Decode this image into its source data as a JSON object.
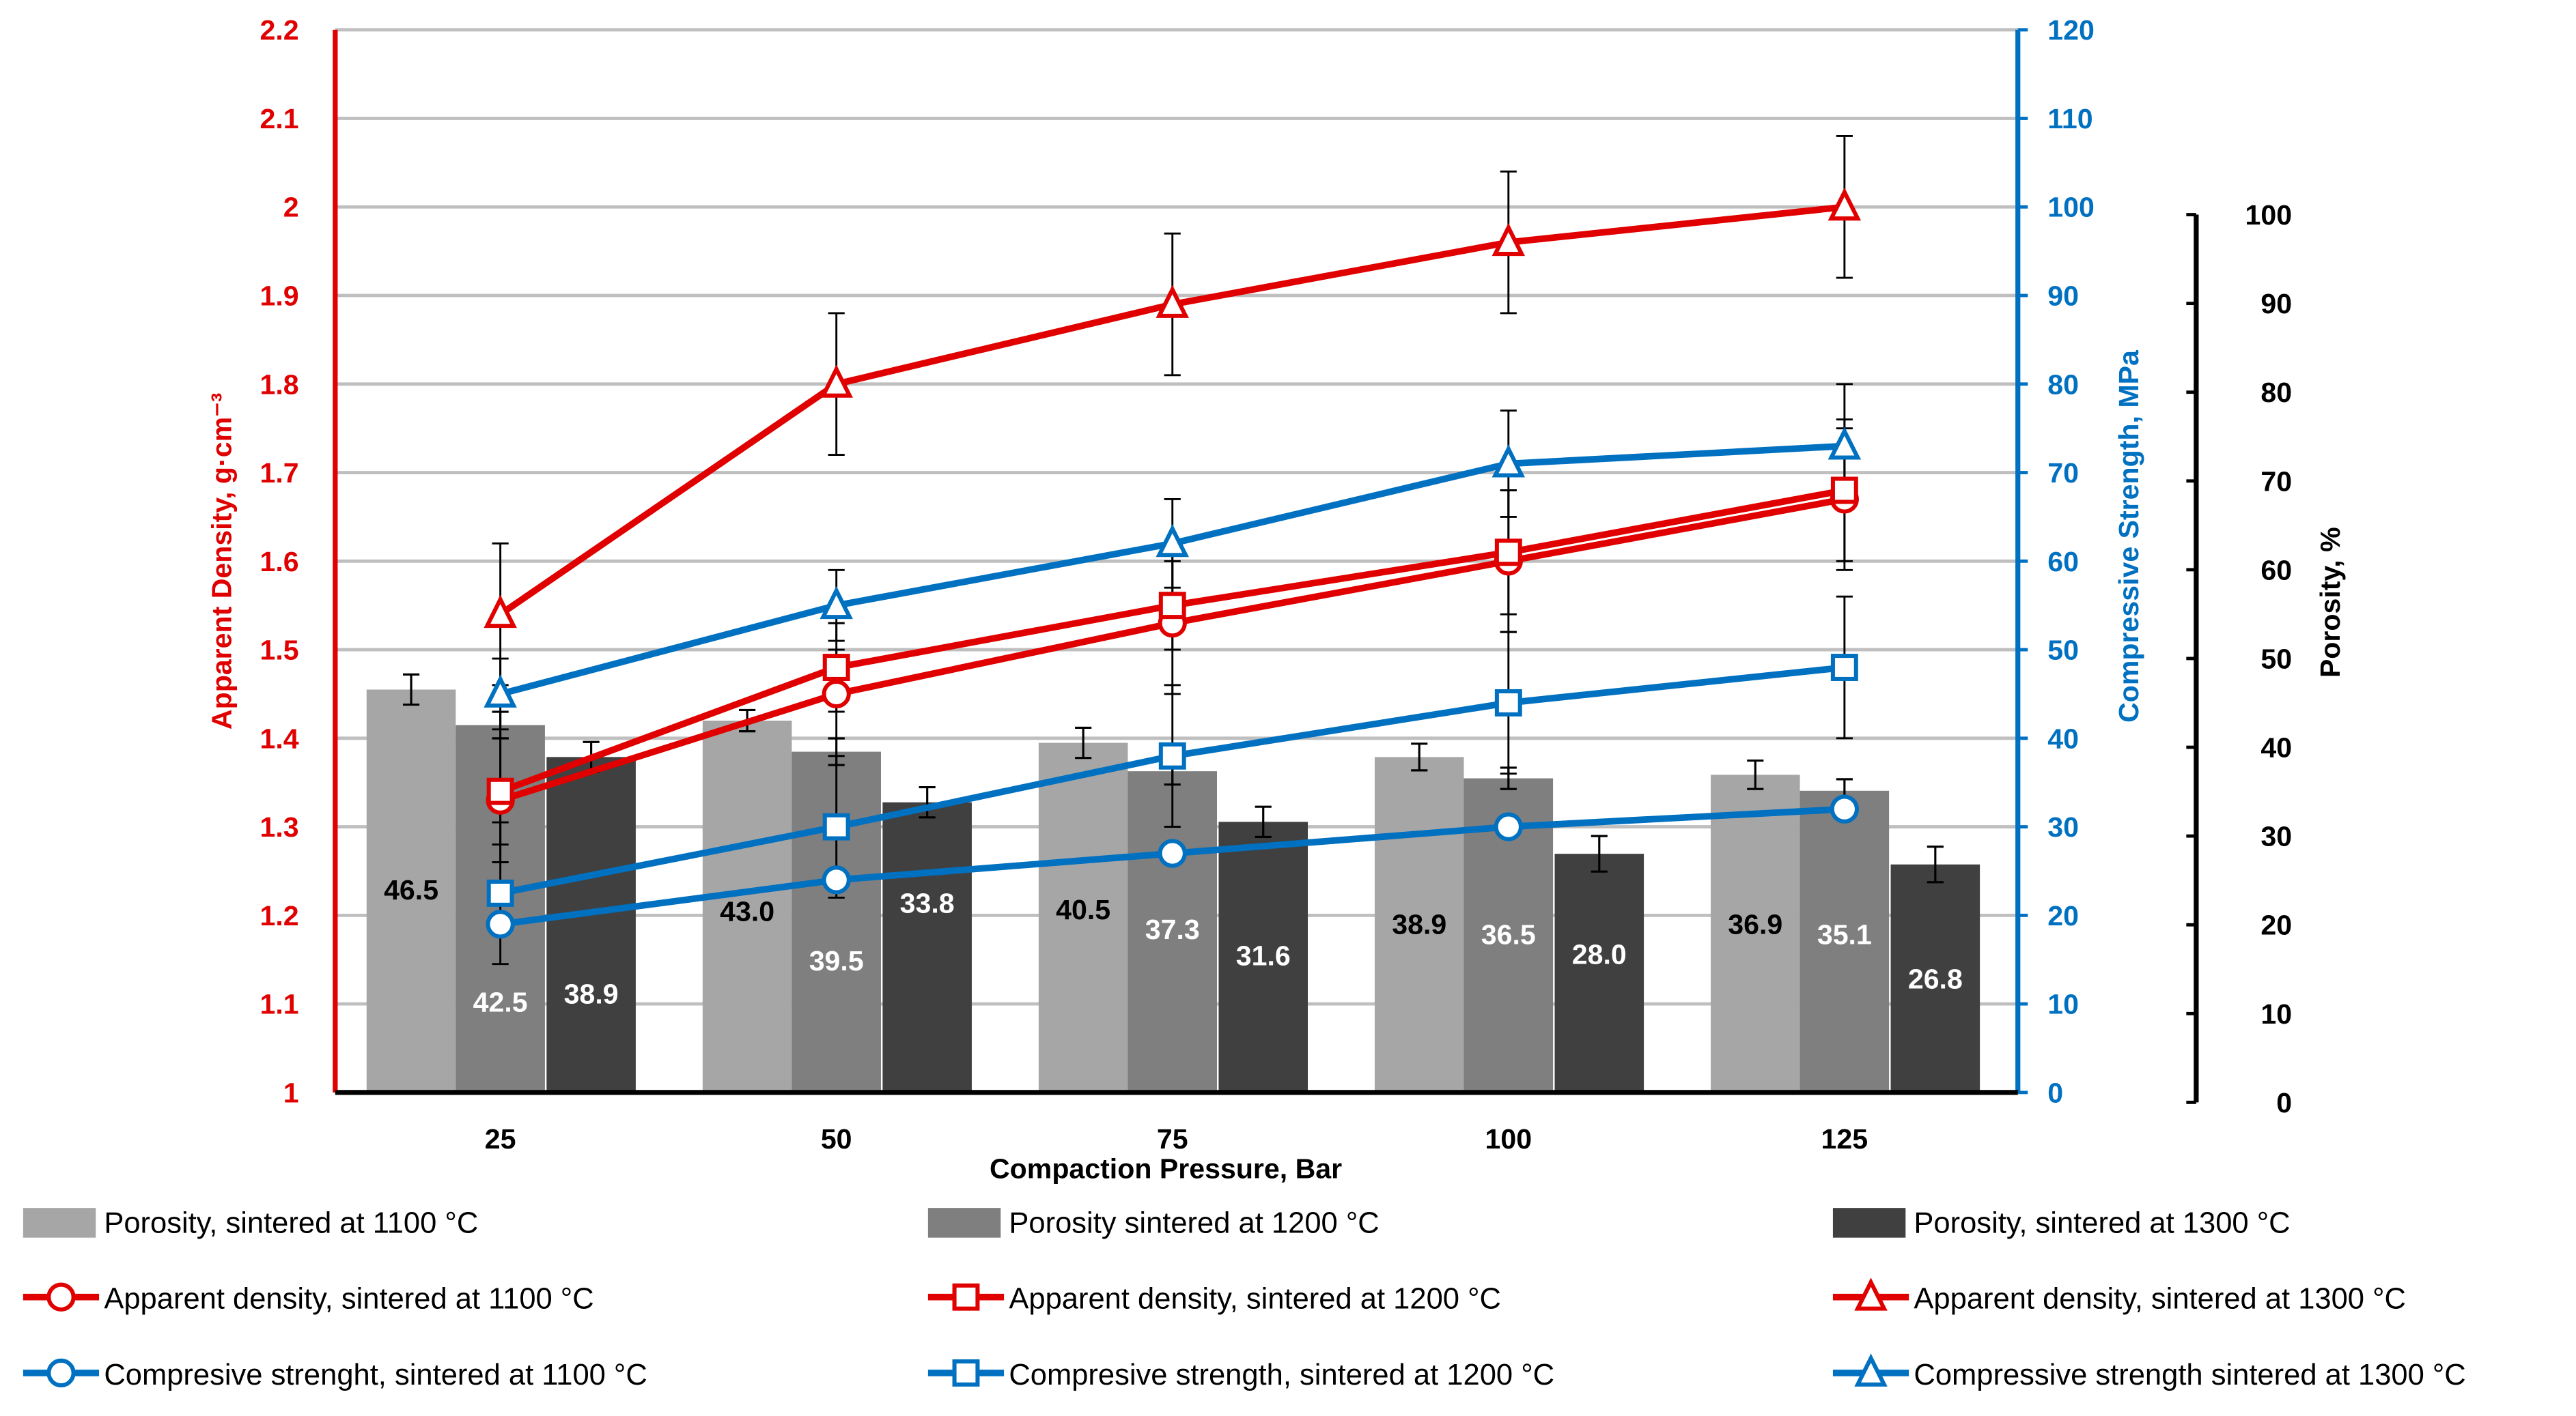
{
  "chart_data": {
    "type": "bar+line",
    "xlabel": "Compaction Pressure, Bar",
    "categories": [
      "25",
      "50",
      "75",
      "100",
      "125"
    ],
    "axes": {
      "left": {
        "label": "Apparent Density, g·cm⁻³",
        "range": [
          1,
          2.2
        ],
        "ticks": [
          "1",
          "1.1",
          "1.2",
          "1.3",
          "1.4",
          "1.5",
          "1.6",
          "1.7",
          "1.8",
          "1.9",
          "2",
          "2.1",
          "2.2"
        ],
        "color": "#e00000"
      },
      "right_blue": {
        "label": "Compressive Strength, MPa",
        "range": [
          0,
          120
        ],
        "ticks": [
          "0",
          "10",
          "20",
          "30",
          "40",
          "50",
          "60",
          "70",
          "80",
          "90",
          "100",
          "110",
          "120"
        ],
        "color": "#0070c0"
      },
      "right_black": {
        "label": "Porosity, %",
        "range": [
          0,
          100
        ],
        "ticks": [
          "0",
          "10",
          "20",
          "30",
          "40",
          "50",
          "60",
          "70",
          "80",
          "90",
          "100"
        ],
        "color": "#000000"
      }
    },
    "grid": true,
    "bars": [
      {
        "name": "Porosity, sintered at 1100 °C",
        "color": "#a6a6a6",
        "label_color": "#000000",
        "values": [
          46.5,
          43.0,
          40.5,
          38.9,
          36.9
        ],
        "labels": [
          "46.5",
          "43.0",
          "40.5",
          "38.9",
          "36.9"
        ],
        "errors": [
          1.7,
          1.2,
          1.7,
          1.5,
          1.6
        ]
      },
      {
        "name": "Porosity sintered at 1200 °C",
        "color": "#7f7f7f",
        "label_color": "#ffffff",
        "values": [
          42.5,
          39.5,
          37.3,
          36.5,
          35.1
        ],
        "labels": [
          "42.5",
          "39.5",
          "37.3",
          "36.5",
          "35.1"
        ],
        "errors": [
          1.5,
          1.5,
          1.5,
          1.2,
          1.3
        ]
      },
      {
        "name": "Porosity, sintered at 1300 °C",
        "color": "#404040",
        "label_color": "#ffffff",
        "values": [
          38.9,
          33.8,
          31.6,
          28.0,
          26.8
        ],
        "labels": [
          "38.9",
          "33.8",
          "31.6",
          "28.0",
          "26.8"
        ],
        "errors": [
          1.7,
          1.7,
          1.7,
          2.0,
          2.0
        ]
      }
    ],
    "lines": [
      {
        "name": "Apparent density, sintered at 1100 °C",
        "axis": "left",
        "color": "#e00000",
        "marker": "circle",
        "values": [
          1.33,
          1.45,
          1.53,
          1.6,
          1.67
        ],
        "errors": [
          0.07,
          0.05,
          0.08,
          0.08,
          0.08
        ]
      },
      {
        "name": "Apparent density, sintered at 1200 °C",
        "axis": "left",
        "color": "#e00000",
        "marker": "square",
        "values": [
          1.34,
          1.48,
          1.55,
          1.61,
          1.68
        ],
        "errors": [
          0.06,
          0.05,
          0.05,
          0.07,
          0.08
        ]
      },
      {
        "name": "Apparent density, sintered at 1300 °C",
        "axis": "left",
        "color": "#e00000",
        "marker": "triangle",
        "values": [
          1.54,
          1.8,
          1.89,
          1.96,
          2.0
        ],
        "errors": [
          0.08,
          0.08,
          0.08,
          0.08,
          0.08
        ]
      },
      {
        "name": "Compresive strenght, sintered at 1100 °C",
        "axis": "right_blue",
        "color": "#0070c0",
        "marker": "circle",
        "values": [
          19,
          24,
          27,
          30,
          32
        ],
        "errors": [
          0,
          0,
          0,
          0,
          0
        ]
      },
      {
        "name": "Compresive strength, sintered at 1200 °C",
        "axis": "right_blue",
        "color": "#0070c0",
        "marker": "square",
        "values": [
          22.5,
          30,
          38,
          44,
          48
        ],
        "errors": [
          8,
          8,
          8,
          8,
          8
        ]
      },
      {
        "name": "Compressive strength sintered at 1300 °C",
        "axis": "right_blue",
        "color": "#0070c0",
        "marker": "triangle",
        "values": [
          45,
          55,
          62,
          71,
          73
        ],
        "errors": [
          4,
          4,
          5,
          6,
          7
        ]
      }
    ],
    "legend_position": "bottom"
  }
}
